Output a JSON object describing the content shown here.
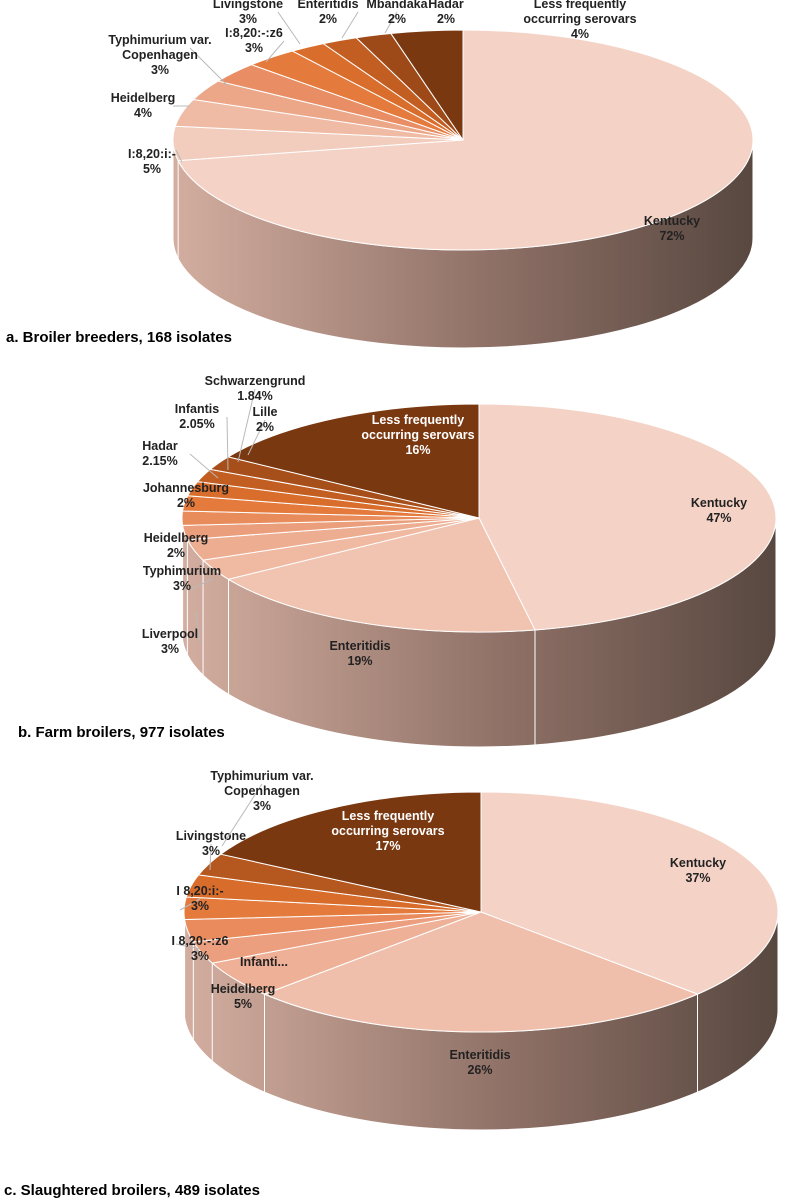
{
  "chart_data": [
    {
      "type": "pie",
      "style": "3d",
      "caption": "a.  Broiler breeders, 168 isolates",
      "slices": [
        {
          "label": "Kentucky",
          "value_text": "72%",
          "value": 72,
          "color": "#f4d3c6"
        },
        {
          "label": "I:8,20:i:-",
          "value_text": "5%",
          "value": 5,
          "color": "#f2ccbc"
        },
        {
          "label": "Heidelberg",
          "value_text": "4%",
          "value": 4,
          "color": "#efbba5"
        },
        {
          "label": "Typhimurium var. Copenhagen",
          "value_text": "3%",
          "value": 3,
          "color": "#eca688"
        },
        {
          "label": "I:8,20:-:z6",
          "value_text": "3%",
          "value": 3,
          "color": "#e98e64"
        },
        {
          "label": "Livingstone",
          "value_text": "3%",
          "value": 3,
          "color": "#e47a3c"
        },
        {
          "label": "Enteritidis",
          "value_text": "2%",
          "value": 2,
          "color": "#d96d2b"
        },
        {
          "label": "Mbandaka",
          "value_text": "2%",
          "value": 2,
          "color": "#c35e22"
        },
        {
          "label": "Hadar",
          "value_text": "2%",
          "value": 2,
          "color": "#9e4a18"
        },
        {
          "label": "Less frequently occurring serovars",
          "value_text": "4%",
          "value": 4,
          "color": "#7a3810"
        }
      ]
    },
    {
      "type": "pie",
      "style": "3d",
      "caption": "b. Farm broilers, 977 isolates",
      "slices": [
        {
          "label": "Kentucky",
          "value_text": "47%",
          "value": 47,
          "color": "#f4d3c6"
        },
        {
          "label": "Enteritidis",
          "value_text": "19%",
          "value": 19,
          "color": "#f1c4b1"
        },
        {
          "label": "Liverpool",
          "value_text": "3%",
          "value": 3,
          "color": "#efb9a2"
        },
        {
          "label": "Typhimurium",
          "value_text": "3%",
          "value": 3,
          "color": "#edad91"
        },
        {
          "label": "Heidelberg",
          "value_text": "2%",
          "value": 2,
          "color": "#eb9e7b"
        },
        {
          "label": "Johannesburg",
          "value_text": "2%",
          "value": 2,
          "color": "#e88c5c"
        },
        {
          "label": "Hadar",
          "value_text": "2.15%",
          "value": 2.15,
          "color": "#e47a3c"
        },
        {
          "label": "Infantis",
          "value_text": "2.05%",
          "value": 2.05,
          "color": "#d96d2b"
        },
        {
          "label": "Schwarzengrund",
          "value_text": "1.84%",
          "value": 1.84,
          "color": "#c35e22"
        },
        {
          "label": "Lille",
          "value_text": "2%",
          "value": 2,
          "color": "#a74f1a"
        },
        {
          "label": "Less frequently occurring serovars",
          "value_text": "16%",
          "value": 16,
          "color": "#7a3810"
        }
      ]
    },
    {
      "type": "pie",
      "style": "3d",
      "caption": "c. Slaughtered  broilers, 489 isolates",
      "slices": [
        {
          "label": "Kentucky",
          "value_text": "37%",
          "value": 37,
          "color": "#f4d3c6"
        },
        {
          "label": "Enteritidis",
          "value_text": "26%",
          "value": 26,
          "color": "#f0bfab"
        },
        {
          "label": "Heidelberg",
          "value_text": "5%",
          "value": 5,
          "color": "#eeb096"
        },
        {
          "label": "Infanti...",
          "value_text": "",
          "value": 3,
          "color": "#eb9f7f"
        },
        {
          "label": "I 8,20:-:z6",
          "value_text": "3%",
          "value": 3,
          "color": "#e98b5c"
        },
        {
          "label": "I 8,20:i:-",
          "value_text": "3%",
          "value": 3,
          "color": "#e47a3c"
        },
        {
          "label": "Livingstone",
          "value_text": "3%",
          "value": 3,
          "color": "#d86d2b"
        },
        {
          "label": "Typhimurium var. Copenhagen",
          "value_text": "3%",
          "value": 3,
          "color": "#b45820"
        },
        {
          "label": "Less frequently occurring serovars",
          "value_text": "17%",
          "value": 17,
          "color": "#7a3810"
        }
      ]
    }
  ]
}
